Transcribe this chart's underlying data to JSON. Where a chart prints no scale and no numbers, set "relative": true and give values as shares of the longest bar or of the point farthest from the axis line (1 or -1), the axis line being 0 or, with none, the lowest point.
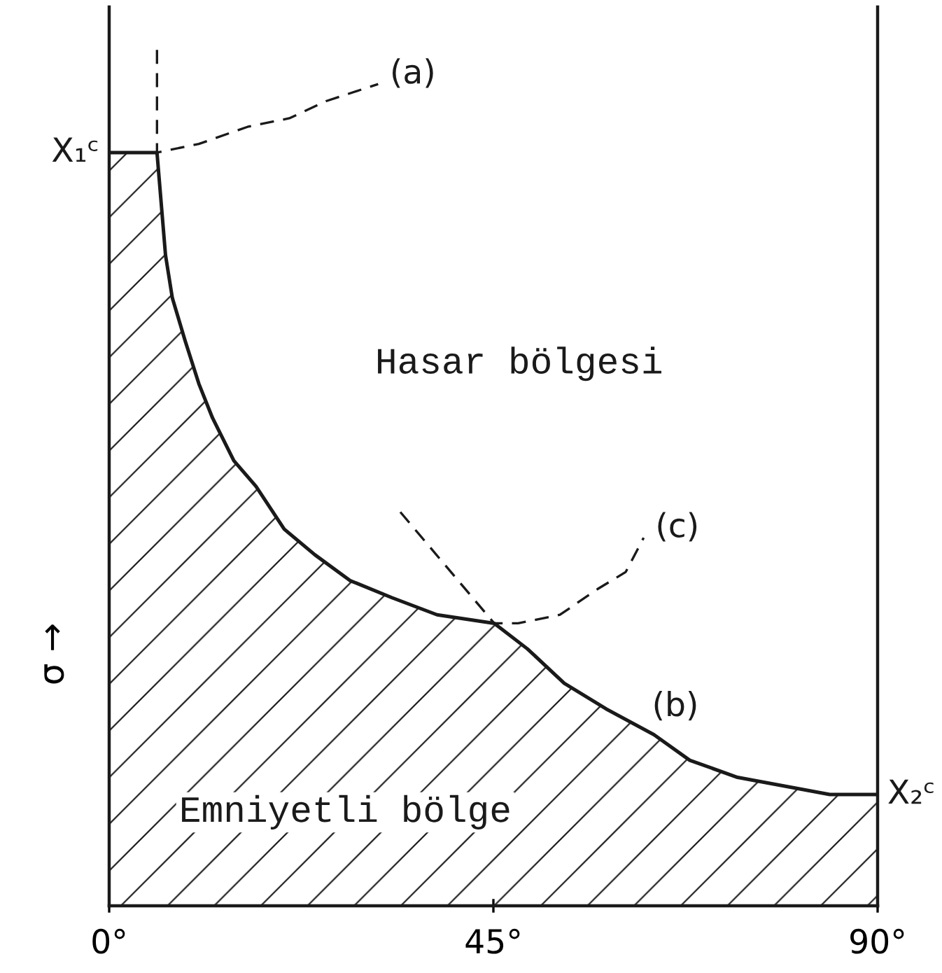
{
  "chart_data": {
    "type": "area",
    "relative": true,
    "ylabel": "σ →",
    "xlim": [
      0,
      90
    ],
    "xticks": [
      {
        "value": 0,
        "label": "0°"
      },
      {
        "value": 45,
        "label": "45°"
      },
      {
        "value": 90,
        "label": "90°"
      }
    ],
    "tick_labels": "x",
    "series": [
      {
        "name": "(b)",
        "line_style": "solid",
        "color": "#1a1a1a",
        "x": [
          0,
          5.6,
          6.6,
          7.4,
          8.9,
          10.5,
          12.1,
          14.6,
          17.2,
          20.5,
          24.1,
          28.2,
          33.1,
          38.4,
          45.1,
          49.0,
          53.3,
          58.2,
          63.8,
          68.0,
          73.6,
          79.0,
          84.4,
          90
        ],
        "values": [
          0.88,
          0.88,
          0.76,
          0.71,
          0.66,
          0.61,
          0.57,
          0.52,
          0.49,
          0.44,
          0.41,
          0.38,
          0.36,
          0.34,
          0.33,
          0.3,
          0.26,
          0.23,
          0.2,
          0.17,
          0.15,
          0.14,
          0.13,
          0.13
        ]
      },
      {
        "name": "(a)",
        "type": "line",
        "line_style": "dashed",
        "color": "#1a1a1a",
        "x": [
          5.6,
          5.6,
          10.5,
          16.2,
          21.1,
          25.4,
          31.5
        ],
        "values": [
          1.0,
          0.88,
          0.89,
          0.91,
          0.92,
          0.94,
          0.96
        ]
      },
      {
        "name": "(c)",
        "type": "line",
        "line_style": "dashed",
        "color": "#1a1a1a",
        "x": [
          34.1,
          45.1,
          47.9,
          52.8,
          57.2,
          60.5,
          62.6
        ],
        "values": [
          0.46,
          0.33,
          0.33,
          0.34,
          0.37,
          0.39,
          0.43
        ]
      }
    ],
    "annotations": [
      {
        "text": "X₁ᶜ",
        "x": 0,
        "y": 0.88
      },
      "Hasar bölgesi",
      "Emniyetli bölge",
      {
        "text": "X₂ᶜ",
        "x": 90,
        "y": 0.13
      }
    ]
  }
}
